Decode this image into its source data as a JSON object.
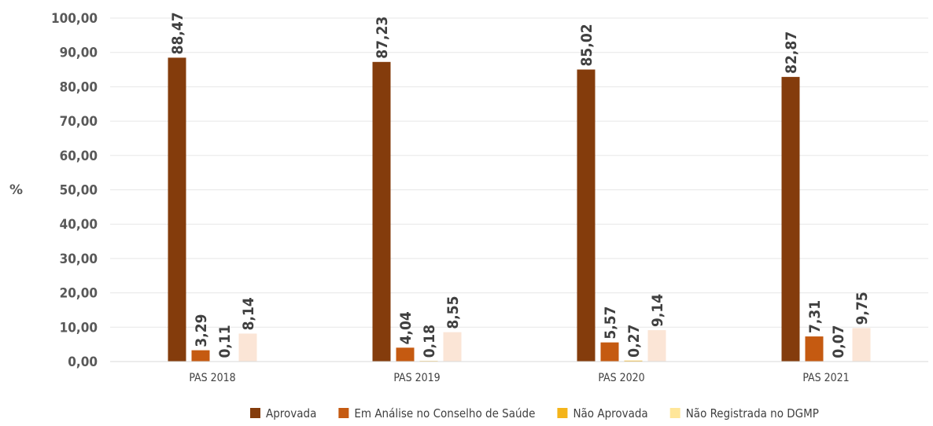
{
  "chart_data": {
    "type": "bar",
    "ylabel": "%",
    "ylim": [
      0,
      100
    ],
    "yticks": [
      "0,00",
      "10,00",
      "20,00",
      "30,00",
      "40,00",
      "50,00",
      "60,00",
      "70,00",
      "80,00",
      "90,00",
      "100,00"
    ],
    "categories": [
      "PAS 2018",
      "PAS 2019",
      "PAS 2020",
      "PAS 2021"
    ],
    "legend_position": "bottom",
    "grid": true,
    "series": [
      {
        "name": "Aprovada",
        "color": "#843C0C",
        "values": [
          88.47,
          87.23,
          85.02,
          82.87
        ],
        "labels": [
          "88,47",
          "87,23",
          "85,02",
          "82,87"
        ]
      },
      {
        "name": "Em Análise no Conselho de Saúde",
        "color": "#C55A11",
        "values": [
          3.29,
          4.04,
          5.57,
          7.31
        ],
        "labels": [
          "3,29",
          "4,04",
          "5,57",
          "7,31"
        ]
      },
      {
        "name": "Não Aprovada",
        "color": "#F4B41A",
        "values": [
          0.11,
          0.18,
          0.27,
          0.07
        ],
        "labels": [
          "0,11",
          "0,18",
          "0,27",
          "0,07"
        ]
      },
      {
        "name": "Não Registrada no DGMP",
        "color": "#FBE5D6",
        "values": [
          8.14,
          8.55,
          9.14,
          9.75
        ],
        "labels": [
          "8,14",
          "8,55",
          "9,14",
          "9,75"
        ]
      }
    ],
    "legend_colors": [
      "#843C0C",
      "#C55A11",
      "#F4B41A",
      "#FFE699"
    ]
  }
}
